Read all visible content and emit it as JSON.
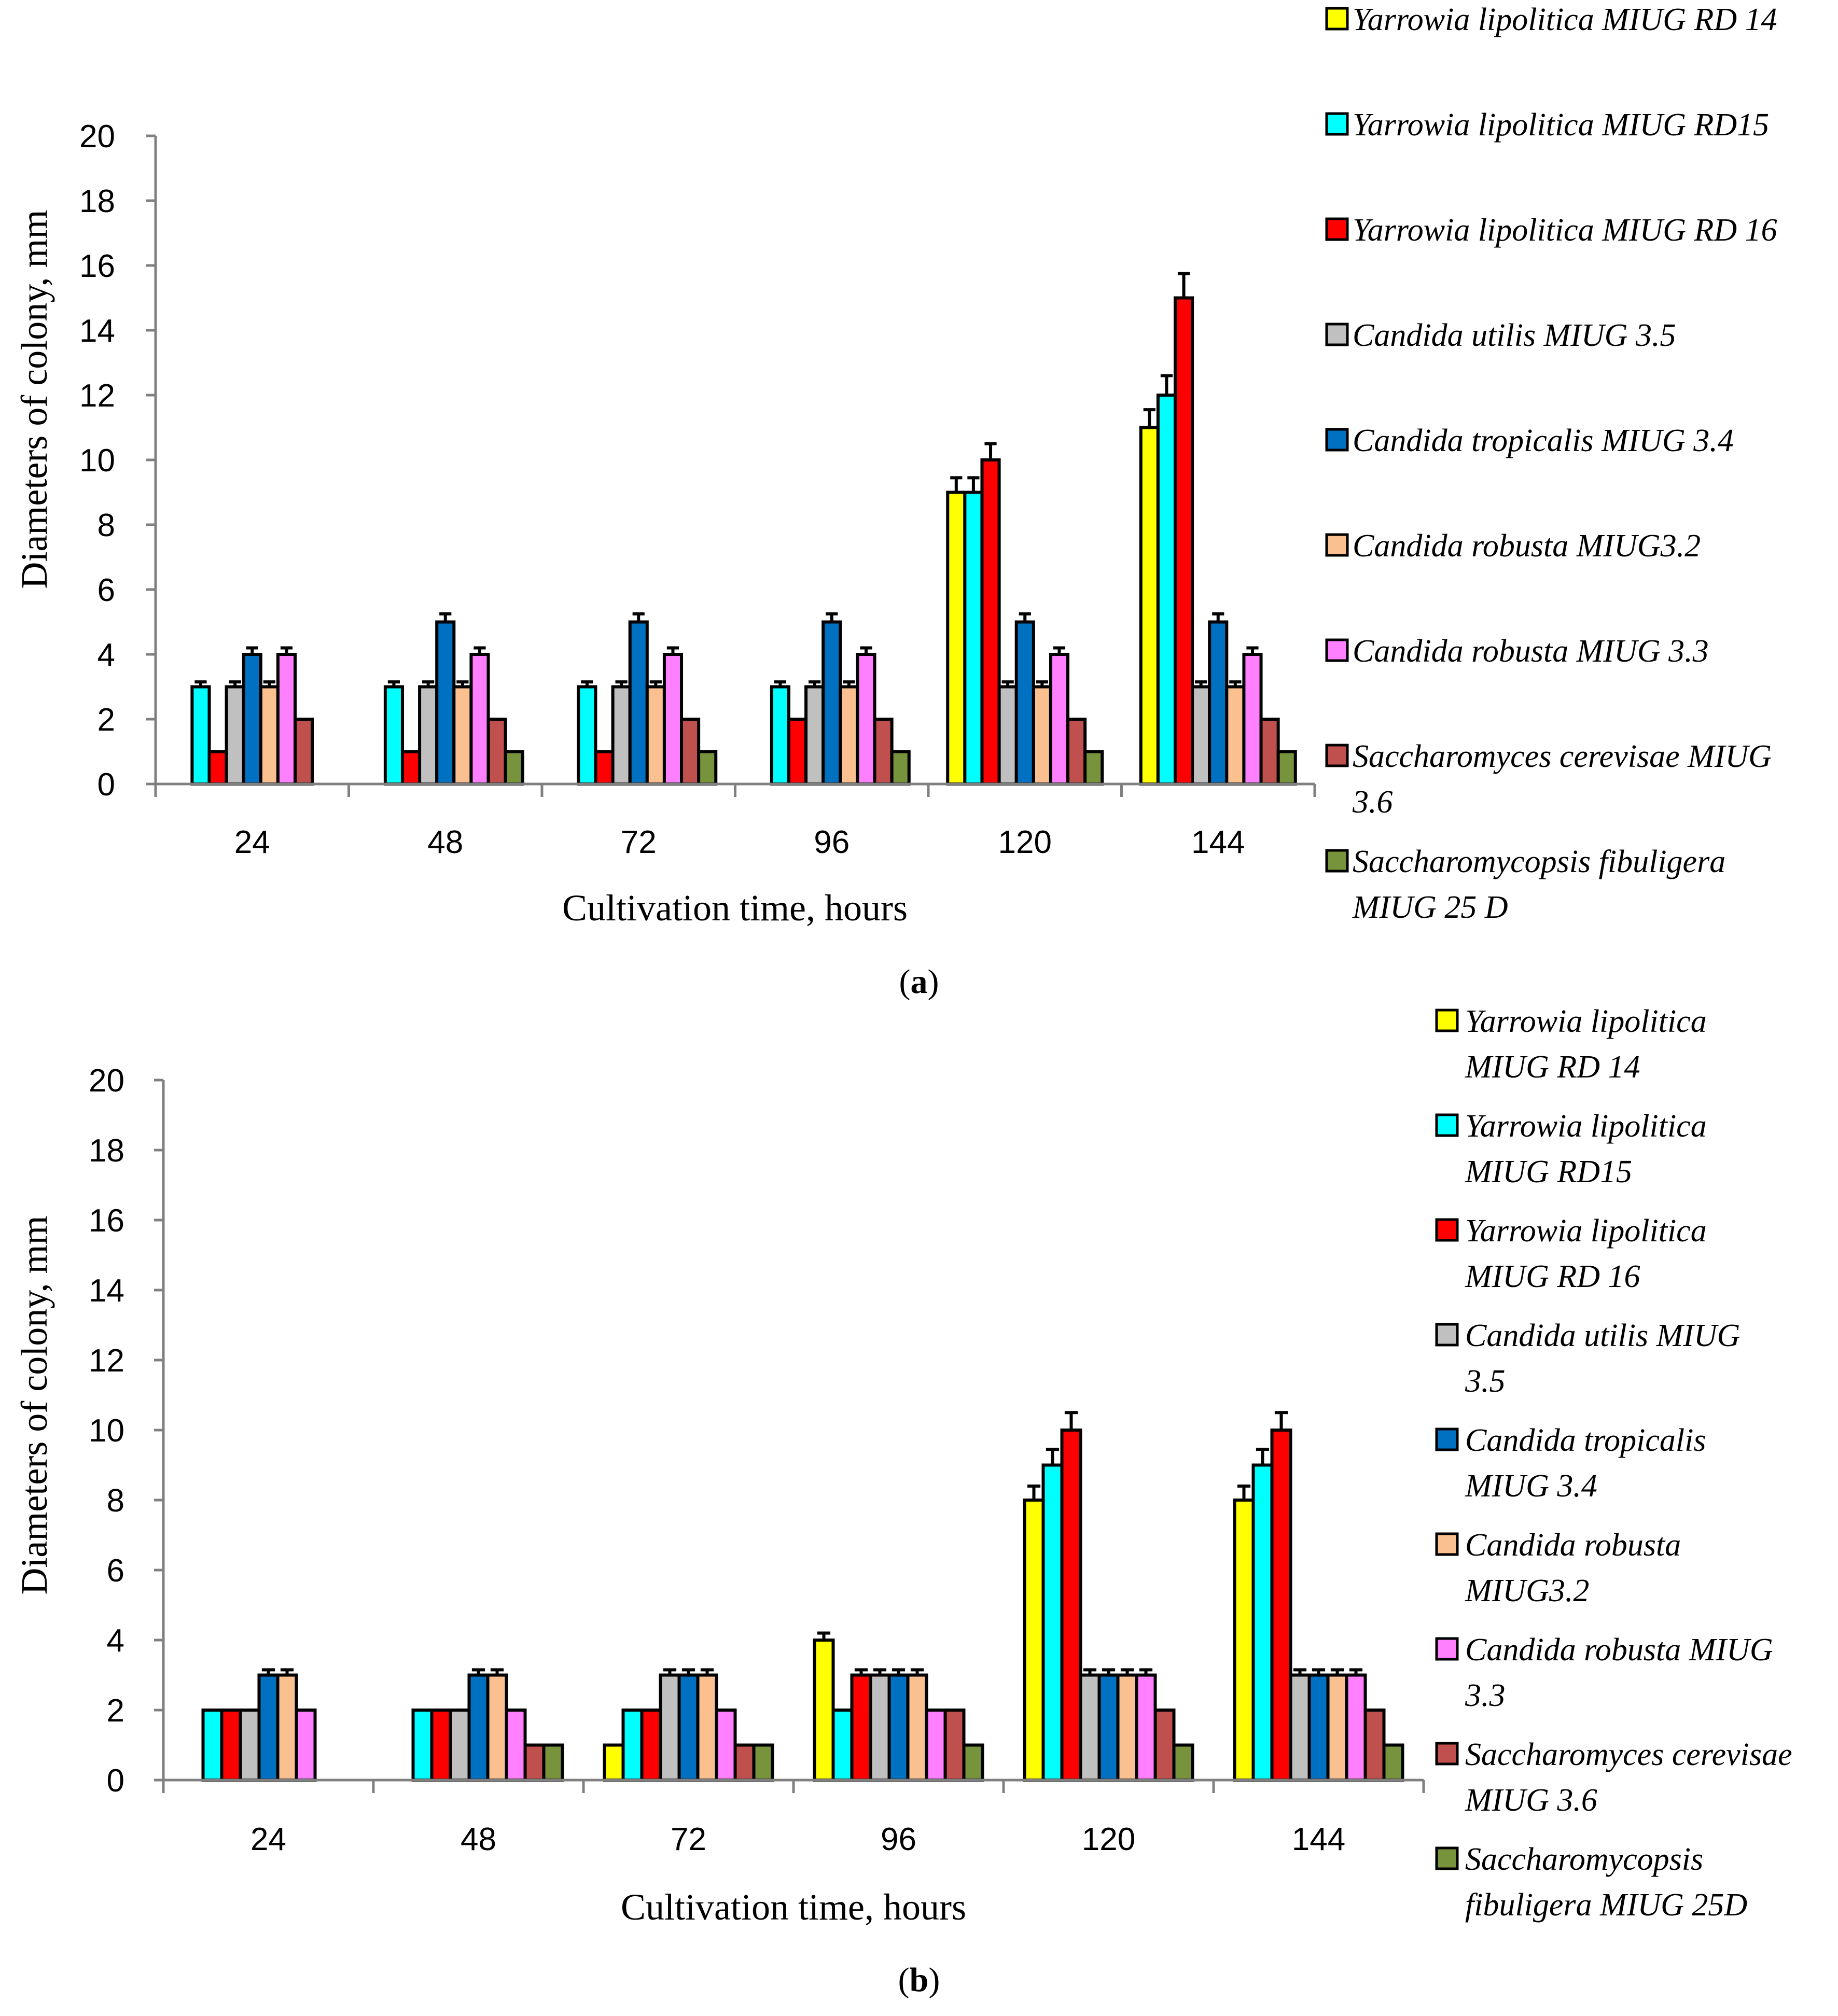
{
  "series_colors": [
    "#ffff00",
    "#00ffff",
    "#ff0000",
    "#c0c0c0",
    "#0070c0",
    "#fac090",
    "#ff80ff",
    "#c0504d",
    "#77933c"
  ],
  "chart_data": [
    {
      "id": "a",
      "type": "bar",
      "panel_label_open": "(",
      "panel_label_letter": "a",
      "panel_label_close": ")",
      "xlabel": "Cultivation time, hours",
      "ylabel": "Diameters of colony, mm",
      "ylim": [
        0,
        20
      ],
      "yticks": [
        "0",
        "2",
        "4",
        "6",
        "8",
        "10",
        "12",
        "14",
        "16",
        "18",
        "20"
      ],
      "categories": [
        "24",
        "48",
        "72",
        "96",
        "120",
        "144"
      ],
      "legend_placement": "right",
      "series": [
        {
          "name": "Yarrowia lipolitica MIUG RD 14",
          "legend_lines": [
            "Yarrowia lipolitica MIUG RD 14"
          ],
          "values": [
            0,
            0,
            0,
            0,
            9,
            11
          ],
          "errors": [
            0,
            0,
            0,
            0,
            0.45,
            0.55
          ]
        },
        {
          "name": "Yarrowia lipolitica MIUG RD15",
          "legend_lines": [
            "Yarrowia lipolitica MIUG RD15"
          ],
          "values": [
            3,
            3,
            3,
            3,
            9,
            12
          ],
          "errors": [
            0.15,
            0.15,
            0.15,
            0.15,
            0.45,
            0.6
          ]
        },
        {
          "name": "Yarrowia lipolitica MIUG RD 16",
          "legend_lines": [
            "Yarrowia lipolitica MIUG RD 16"
          ],
          "values": [
            1,
            1,
            1,
            2,
            10,
            15
          ],
          "errors": [
            0,
            0,
            0,
            0,
            0.5,
            0.75
          ]
        },
        {
          "name": "Candida utilis MIUG 3.5",
          "legend_lines": [
            "Candida utilis MIUG 3.5"
          ],
          "values": [
            3,
            3,
            3,
            3,
            3,
            3
          ],
          "errors": [
            0.15,
            0.15,
            0.15,
            0.15,
            0.15,
            0.15
          ]
        },
        {
          "name": "Candida tropicalis MIUG 3.4",
          "legend_lines": [
            "Candida tropicalis MIUG 3.4"
          ],
          "values": [
            4,
            5,
            5,
            5,
            5,
            5
          ],
          "errors": [
            0.2,
            0.25,
            0.25,
            0.25,
            0.25,
            0.25
          ]
        },
        {
          "name": "Candida robusta MIUG3.2",
          "legend_lines": [
            "Candida robusta MIUG3.2"
          ],
          "values": [
            3,
            3,
            3,
            3,
            3,
            3
          ],
          "errors": [
            0.15,
            0.15,
            0.15,
            0.15,
            0.15,
            0.15
          ]
        },
        {
          "name": "Candida robusta MIUG 3.3",
          "legend_lines": [
            "Candida robusta MIUG 3.3"
          ],
          "values": [
            4,
            4,
            4,
            4,
            4,
            4
          ],
          "errors": [
            0.2,
            0.2,
            0.2,
            0.2,
            0.2,
            0.2
          ]
        },
        {
          "name": "Saccharomyces cerevisae MIUG 3.6",
          "legend_lines": [
            "Saccharomyces cerevisae MIUG",
            "3.6"
          ],
          "values": [
            2,
            2,
            2,
            2,
            2,
            2
          ],
          "errors": [
            0,
            0,
            0,
            0,
            0,
            0
          ]
        },
        {
          "name": "Saccharomycopsis fibuligera MIUG 25 D",
          "legend_lines": [
            "Saccharomycopsis fibuligera",
            "MIUG 25 D"
          ],
          "values": [
            0,
            1,
            1,
            1,
            1,
            1
          ],
          "errors": [
            0,
            0,
            0,
            0,
            0,
            0
          ]
        }
      ]
    },
    {
      "id": "b",
      "type": "bar",
      "panel_label_open": "(",
      "panel_label_letter": "b",
      "panel_label_close": ")",
      "xlabel": "Cultivation time, hours",
      "ylabel": "Diameters of colony, mm",
      "ylim": [
        0,
        20
      ],
      "yticks": [
        "0",
        "2",
        "4",
        "6",
        "8",
        "10",
        "12",
        "14",
        "16",
        "18",
        "20"
      ],
      "categories": [
        "24",
        "48",
        "72",
        "96",
        "120",
        "144"
      ],
      "legend_placement": "right",
      "series": [
        {
          "name": "Yarrowia lipolitica MIUG RD 14",
          "legend_lines": [
            "Yarrowia lipolitica",
            "MIUG RD 14"
          ],
          "values": [
            0,
            0,
            1,
            4,
            8,
            8
          ],
          "errors": [
            0,
            0,
            0,
            0.2,
            0.4,
            0.4
          ]
        },
        {
          "name": "Yarrowia lipolitica MIUG RD15",
          "legend_lines": [
            "Yarrowia lipolitica",
            "MIUG RD15"
          ],
          "values": [
            2,
            2,
            2,
            2,
            9,
            9
          ],
          "errors": [
            0,
            0,
            0,
            0,
            0.45,
            0.45
          ]
        },
        {
          "name": "Yarrowia lipolitica MIUG RD 16",
          "legend_lines": [
            "Yarrowia lipolitica",
            "MIUG RD 16"
          ],
          "values": [
            2,
            2,
            2,
            3,
            10,
            10
          ],
          "errors": [
            0,
            0,
            0,
            0.15,
            0.5,
            0.5
          ]
        },
        {
          "name": "Candida utilis MIUG 3.5",
          "legend_lines": [
            "Candida utilis MIUG",
            "3.5"
          ],
          "values": [
            2,
            2,
            3,
            3,
            3,
            3
          ],
          "errors": [
            0,
            0,
            0.15,
            0.15,
            0.15,
            0.15
          ]
        },
        {
          "name": "Candida tropicalis MIUG 3.4",
          "legend_lines": [
            "Candida tropicalis",
            "MIUG 3.4"
          ],
          "values": [
            3,
            3,
            3,
            3,
            3,
            3
          ],
          "errors": [
            0.15,
            0.15,
            0.15,
            0.15,
            0.15,
            0.15
          ]
        },
        {
          "name": "Candida robusta MIUG3.2",
          "legend_lines": [
            "Candida robusta",
            "MIUG3.2"
          ],
          "values": [
            3,
            3,
            3,
            3,
            3,
            3
          ],
          "errors": [
            0.15,
            0.15,
            0.15,
            0.15,
            0.15,
            0.15
          ]
        },
        {
          "name": "Candida robusta MIUG 3.3",
          "legend_lines": [
            "Candida robusta MIUG",
            "3.3"
          ],
          "values": [
            2,
            2,
            2,
            2,
            3,
            3
          ],
          "errors": [
            0,
            0,
            0,
            0,
            0.15,
            0.15
          ]
        },
        {
          "name": "Saccharomyces cerevisae MIUG 3.6",
          "legend_lines": [
            "Saccharomyces cerevisae",
            "MIUG 3.6"
          ],
          "values": [
            0,
            1,
            1,
            2,
            2,
            2
          ],
          "errors": [
            0,
            0,
            0,
            0,
            0,
            0
          ]
        },
        {
          "name": "Saccharomycopsis fibuligera MIUG 25D",
          "legend_lines": [
            "Saccharomycopsis",
            "fibuligera MIUG 25D"
          ],
          "values": [
            0,
            1,
            1,
            1,
            1,
            1
          ],
          "errors": [
            0,
            0,
            0,
            0,
            0,
            0
          ]
        }
      ]
    }
  ]
}
